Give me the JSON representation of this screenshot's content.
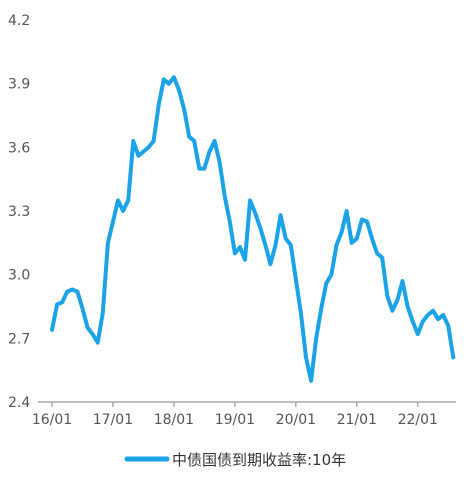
{
  "chart_data": {
    "type": "line",
    "title": "",
    "xlabel": "",
    "ylabel": "",
    "ylim": [
      2.4,
      4.2
    ],
    "yticks": [
      "4.2",
      "3.9",
      "3.6",
      "3.3",
      "3.0",
      "2.7",
      "2.4"
    ],
    "xticks": [
      "16/01",
      "17/01",
      "18/01",
      "19/01",
      "20/01",
      "21/01",
      "22/01"
    ],
    "grid": false,
    "legend_position": "bottom-center",
    "series": [
      {
        "name": "中债国债到期收益率:10年",
        "color": "#1aa3e8",
        "points": [
          [
            "2016-01",
            2.74
          ],
          [
            "2016-02",
            2.86
          ],
          [
            "2016-03",
            2.87
          ],
          [
            "2016-04",
            2.92
          ],
          [
            "2016-05",
            2.93
          ],
          [
            "2016-06",
            2.92
          ],
          [
            "2016-07",
            2.84
          ],
          [
            "2016-08",
            2.75
          ],
          [
            "2016-09",
            2.72
          ],
          [
            "2016-10",
            2.68
          ],
          [
            "2016-11",
            2.82
          ],
          [
            "2016-12",
            3.15
          ],
          [
            "2017-01",
            3.25
          ],
          [
            "2017-02",
            3.35
          ],
          [
            "2017-03",
            3.3
          ],
          [
            "2017-04",
            3.35
          ],
          [
            "2017-05",
            3.63
          ],
          [
            "2017-06",
            3.56
          ],
          [
            "2017-07",
            3.58
          ],
          [
            "2017-08",
            3.6
          ],
          [
            "2017-09",
            3.63
          ],
          [
            "2017-10",
            3.8
          ],
          [
            "2017-11",
            3.92
          ],
          [
            "2017-12",
            3.9
          ],
          [
            "2018-01",
            3.93
          ],
          [
            "2018-02",
            3.87
          ],
          [
            "2018-03",
            3.78
          ],
          [
            "2018-04",
            3.65
          ],
          [
            "2018-05",
            3.63
          ],
          [
            "2018-06",
            3.5
          ],
          [
            "2018-07",
            3.5
          ],
          [
            "2018-08",
            3.58
          ],
          [
            "2018-09",
            3.63
          ],
          [
            "2018-10",
            3.53
          ],
          [
            "2018-11",
            3.37
          ],
          [
            "2018-12",
            3.25
          ],
          [
            "2019-01",
            3.1
          ],
          [
            "2019-02",
            3.13
          ],
          [
            "2019-03",
            3.07
          ],
          [
            "2019-04",
            3.35
          ],
          [
            "2019-05",
            3.29
          ],
          [
            "2019-06",
            3.22
          ],
          [
            "2019-07",
            3.14
          ],
          [
            "2019-08",
            3.05
          ],
          [
            "2019-09",
            3.14
          ],
          [
            "2019-10",
            3.28
          ],
          [
            "2019-11",
            3.17
          ],
          [
            "2019-12",
            3.14
          ],
          [
            "2020-01",
            2.98
          ],
          [
            "2020-02",
            2.82
          ],
          [
            "2020-03",
            2.61
          ],
          [
            "2020-04",
            2.5
          ],
          [
            "2020-05",
            2.7
          ],
          [
            "2020-06",
            2.84
          ],
          [
            "2020-07",
            2.96
          ],
          [
            "2020-08",
            3.0
          ],
          [
            "2020-09",
            3.14
          ],
          [
            "2020-10",
            3.2
          ],
          [
            "2020-11",
            3.3
          ],
          [
            "2020-12",
            3.15
          ],
          [
            "2021-01",
            3.17
          ],
          [
            "2021-02",
            3.26
          ],
          [
            "2021-03",
            3.25
          ],
          [
            "2021-04",
            3.17
          ],
          [
            "2021-05",
            3.1
          ],
          [
            "2021-06",
            3.08
          ],
          [
            "2021-07",
            2.9
          ],
          [
            "2021-08",
            2.83
          ],
          [
            "2021-09",
            2.88
          ],
          [
            "2021-10",
            2.97
          ],
          [
            "2021-11",
            2.85
          ],
          [
            "2021-12",
            2.78
          ],
          [
            "2022-01",
            2.72
          ],
          [
            "2022-02",
            2.78
          ],
          [
            "2022-03",
            2.81
          ],
          [
            "2022-04",
            2.83
          ],
          [
            "2022-05",
            2.79
          ],
          [
            "2022-06",
            2.81
          ],
          [
            "2022-07",
            2.76
          ],
          [
            "2022-08",
            2.61
          ]
        ]
      }
    ]
  }
}
